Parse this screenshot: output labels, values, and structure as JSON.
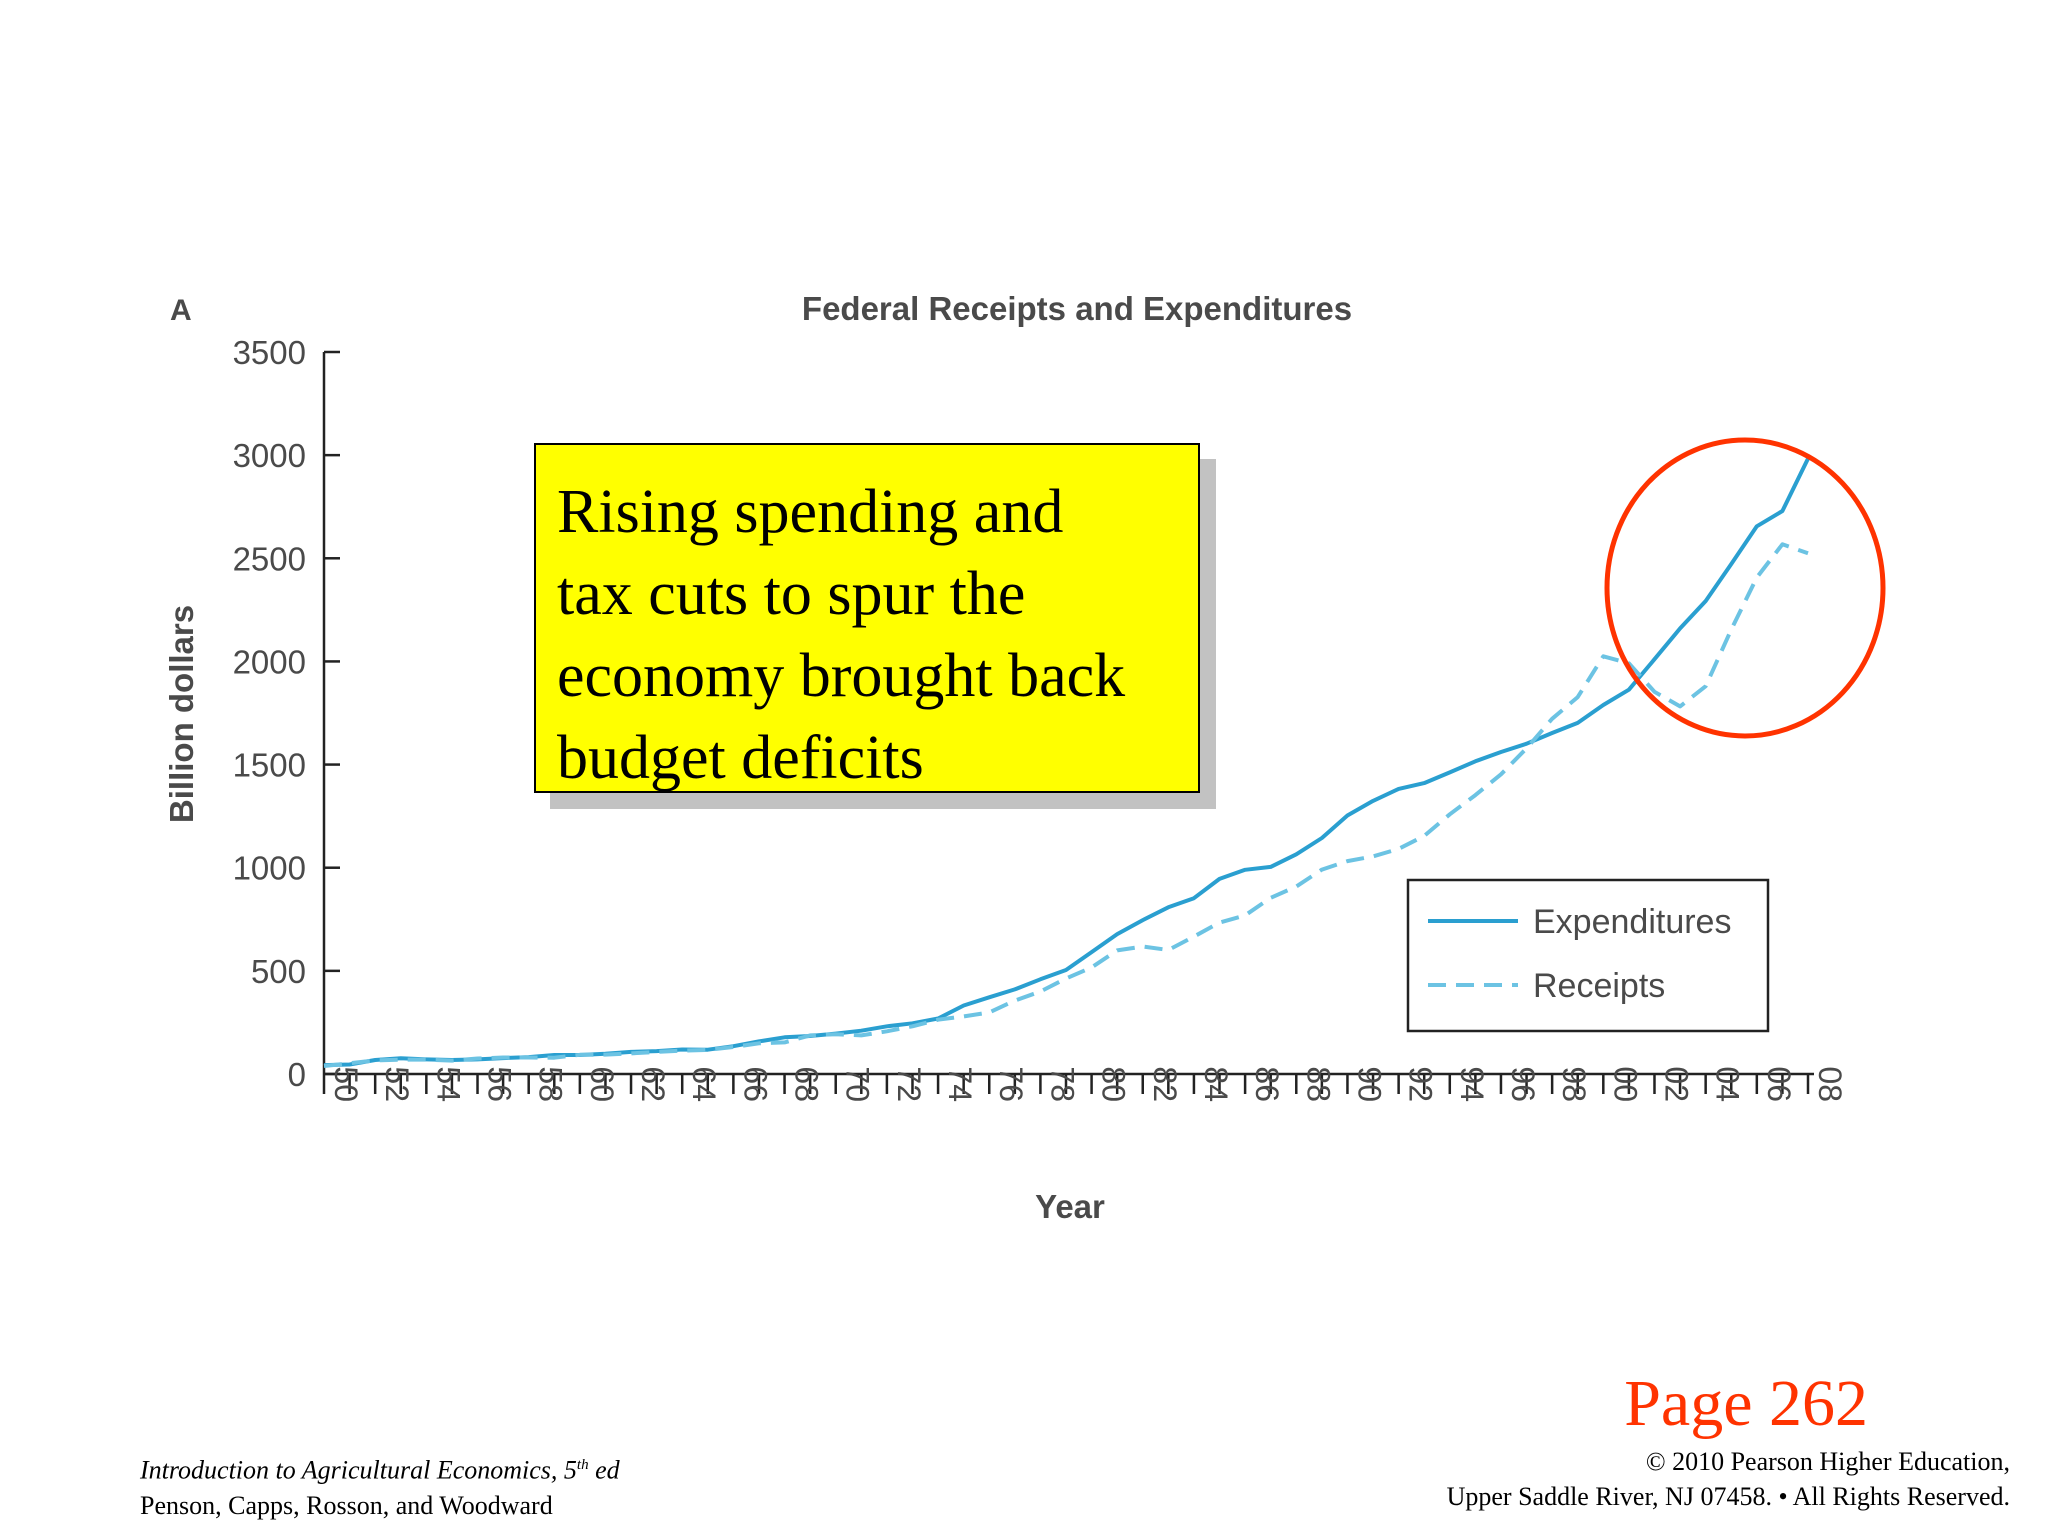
{
  "panel_label": "A",
  "chart_data": {
    "type": "line",
    "title": "Federal Receipts and Expenditures",
    "xlabel": "Year",
    "ylabel": "Billion dollars",
    "ylim": [
      0,
      3500
    ],
    "yticks": [
      0,
      500,
      1000,
      1500,
      2000,
      2500,
      3000,
      3500
    ],
    "xlim": [
      1950,
      2008
    ],
    "xtick_labels": [
      "50",
      "52",
      "54",
      "56",
      "58",
      "60",
      "62",
      "64",
      "66",
      "68",
      "70",
      "72",
      "74",
      "76",
      "78",
      "80",
      "82",
      "84",
      "86",
      "88",
      "90",
      "92",
      "94",
      "96",
      "98",
      "00",
      "02",
      "04",
      "06",
      "08"
    ],
    "grid": false,
    "legend_position": "bottom-right",
    "series": [
      {
        "name": "Expenditures",
        "style": "solid",
        "color": "#2a9fd0",
        "x": [
          1950,
          1951,
          1952,
          1953,
          1954,
          1955,
          1956,
          1957,
          1958,
          1959,
          1960,
          1961,
          1962,
          1963,
          1964,
          1965,
          1966,
          1967,
          1968,
          1969,
          1970,
          1971,
          1972,
          1973,
          1974,
          1975,
          1976,
          1977,
          1978,
          1979,
          1980,
          1981,
          1982,
          1983,
          1984,
          1985,
          1986,
          1987,
          1988,
          1989,
          1990,
          1991,
          1992,
          1993,
          1994,
          1995,
          1996,
          1997,
          1998,
          1999,
          2000,
          2001,
          2002,
          2003,
          2004,
          2005,
          2006,
          2007,
          2008
        ],
        "values": [
          43,
          46,
          68,
          76,
          71,
          68,
          71,
          77,
          82,
          92,
          92,
          98,
          107,
          111,
          119,
          118,
          135,
          158,
          178,
          184,
          196,
          210,
          231,
          246,
          269,
          332,
          372,
          410,
          459,
          504,
          591,
          678,
          746,
          808,
          852,
          946,
          990,
          1004,
          1065,
          1144,
          1253,
          1324,
          1382,
          1410,
          1462,
          1516,
          1561,
          1601,
          1653,
          1702,
          1789,
          1863,
          2011,
          2160,
          2293,
          2472,
          2655,
          2729,
          2983
        ]
      },
      {
        "name": "Receipts",
        "style": "dashed",
        "color": "#6cc3e3",
        "x": [
          1950,
          1951,
          1952,
          1953,
          1954,
          1955,
          1956,
          1957,
          1958,
          1959,
          1960,
          1961,
          1962,
          1963,
          1964,
          1965,
          1966,
          1967,
          1968,
          1969,
          1970,
          1971,
          1972,
          1973,
          1974,
          1975,
          1976,
          1977,
          1978,
          1979,
          1980,
          1981,
          1982,
          1983,
          1984,
          1985,
          1986,
          1987,
          1988,
          1989,
          1990,
          1991,
          1992,
          1993,
          1994,
          1995,
          1996,
          1997,
          1998,
          1999,
          2000,
          2001,
          2002,
          2003,
          2004,
          2005,
          2006,
          2007,
          2008
        ],
        "values": [
          39,
          52,
          66,
          70,
          70,
          65,
          75,
          80,
          80,
          79,
          93,
          94,
          100,
          107,
          113,
          117,
          131,
          149,
          153,
          187,
          193,
          187,
          207,
          231,
          263,
          279,
          298,
          356,
          400,
          463,
          517,
          599,
          618,
          601,
          666,
          734,
          769,
          854,
          909,
          991,
          1032,
          1055,
          1091,
          1154,
          1259,
          1352,
          1453,
          1579,
          1722,
          1827,
          2025,
          1991,
          1853,
          1782,
          1880,
          2154,
          2407,
          2568,
          2524
        ]
      }
    ],
    "annotation": {
      "lines": [
        "Rising spending and",
        "tax cuts to spur the",
        "economy brought back",
        "budget deficits"
      ],
      "highlight_color": "#ff3300",
      "box_color": "#ffff00"
    }
  },
  "footer": {
    "page_number": "Page 262",
    "book_title": "Introduction to Agricultural Economics, 5",
    "edition_sup": "th",
    "edition_suffix": " ed",
    "authors": "Penson, Capps, Rosson, and Woodward",
    "copyright_line1": "© 2010 Pearson Higher Education,",
    "copyright_line2": "Upper Saddle River, NJ 07458. • All Rights Reserved."
  }
}
